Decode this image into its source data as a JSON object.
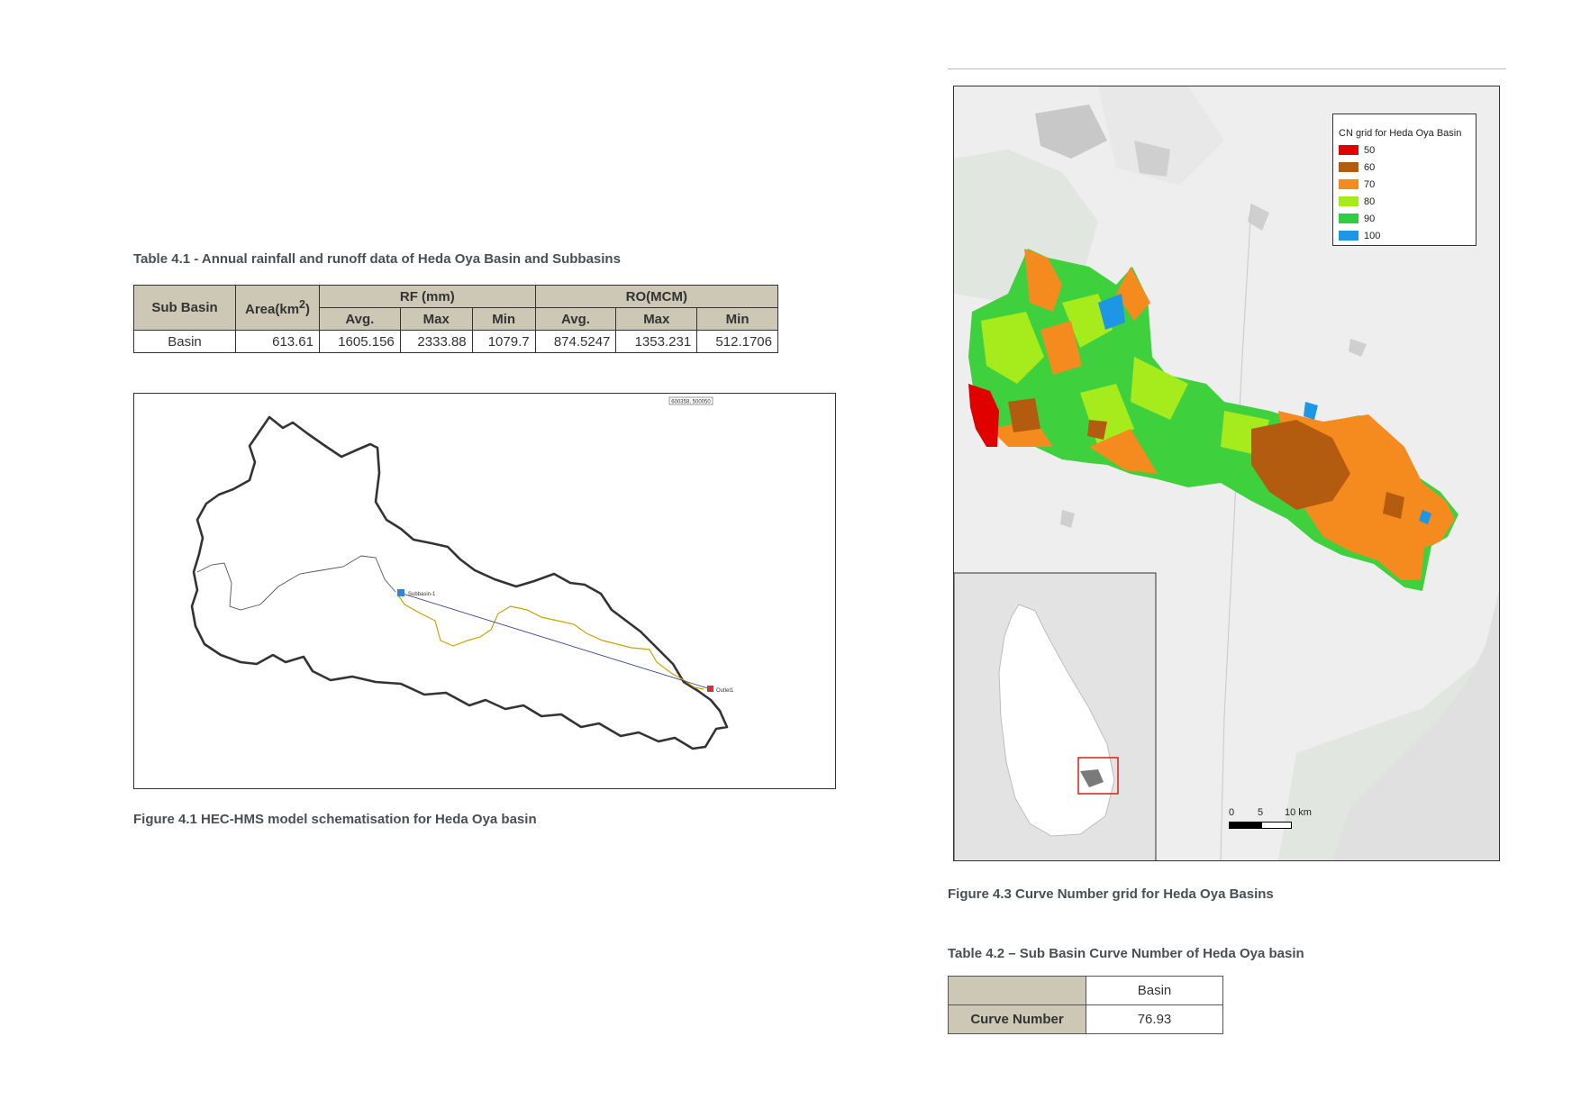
{
  "table1": {
    "caption": "Table 4.1 - Annual rainfall and runoff data of Heda Oya Basin and Subbasins",
    "headers": {
      "sub_basin": "Sub Basin",
      "area": "Area(km",
      "area_sup": "2",
      "area_close": ")",
      "rf": "RF (mm)",
      "ro": "RO(MCM)",
      "avg": "Avg.",
      "max": "Max",
      "min": "Min"
    },
    "row": {
      "name": "Basin",
      "area": "613.61",
      "rf_avg": "1605.156",
      "rf_max": "2333.88",
      "rf_min": "1079.7",
      "ro_avg": "874.5247",
      "ro_max": "1353.231",
      "ro_min": "512.1706"
    }
  },
  "figure1": {
    "caption": "Figure 4.1 HEC-HMS model schematisation for Heda Oya basin",
    "coord_label": "600358, 500050",
    "subbasin_label": "Subbasin-1",
    "outlet_label": "Outlet1"
  },
  "figure3": {
    "caption": "Figure 4.3 Curve Number grid for Heda Oya Basins",
    "legend_title": "CN grid for Heda Oya Basin",
    "legend": [
      {
        "label": "50",
        "color": "#e00000"
      },
      {
        "label": "60",
        "color": "#b35c10"
      },
      {
        "label": "70",
        "color": "#f58b1f"
      },
      {
        "label": "80",
        "color": "#a6eb1c"
      },
      {
        "label": "90",
        "color": "#2fcf3f"
      },
      {
        "label": "100",
        "color": "#1e96e6"
      }
    ],
    "scale": {
      "t0": "0",
      "t5": "5",
      "t10": "10 km"
    }
  },
  "table2": {
    "caption": "Table 4.2 – Sub Basin Curve Number of Heda Oya basin",
    "col_header": "Basin",
    "row_label": "Curve Number",
    "value": "76.93"
  }
}
